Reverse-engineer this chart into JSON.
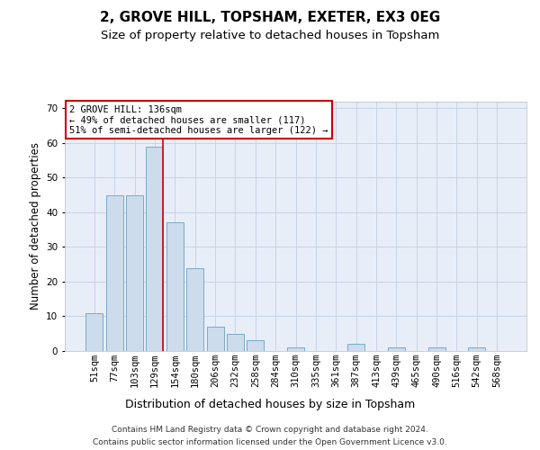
{
  "title1": "2, GROVE HILL, TOPSHAM, EXETER, EX3 0EG",
  "title2": "Size of property relative to detached houses in Topsham",
  "xlabel": "Distribution of detached houses by size in Topsham",
  "ylabel": "Number of detached properties",
  "bar_labels": [
    "51sqm",
    "77sqm",
    "103sqm",
    "129sqm",
    "154sqm",
    "180sqm",
    "206sqm",
    "232sqm",
    "258sqm",
    "284sqm",
    "310sqm",
    "335sqm",
    "361sqm",
    "387sqm",
    "413sqm",
    "439sqm",
    "465sqm",
    "490sqm",
    "516sqm",
    "542sqm",
    "568sqm"
  ],
  "bar_values": [
    11,
    45,
    45,
    59,
    37,
    24,
    7,
    5,
    3,
    0,
    1,
    0,
    0,
    2,
    0,
    1,
    0,
    1,
    0,
    1,
    0
  ],
  "bar_color": "#ccdcec",
  "bar_edgecolor": "#7aaac8",
  "highlight_index": 3,
  "highlight_color": "#cc0000",
  "annotation_text": "2 GROVE HILL: 136sqm\n← 49% of detached houses are smaller (117)\n51% of semi-detached houses are larger (122) →",
  "annotation_box_facecolor": "#ffffff",
  "annotation_box_edgecolor": "#cc0000",
  "ylim": [
    0,
    72
  ],
  "yticks": [
    0,
    10,
    20,
    30,
    40,
    50,
    60,
    70
  ],
  "grid_color": "#c8d4e4",
  "background_color": "#e8eef8",
  "footer_line1": "Contains HM Land Registry data © Crown copyright and database right 2024.",
  "footer_line2": "Contains public sector information licensed under the Open Government Licence v3.0.",
  "title1_fontsize": 11,
  "title2_fontsize": 9.5,
  "xlabel_fontsize": 9,
  "ylabel_fontsize": 8.5,
  "tick_fontsize": 7.5,
  "annotation_fontsize": 7.5,
  "footer_fontsize": 6.5
}
